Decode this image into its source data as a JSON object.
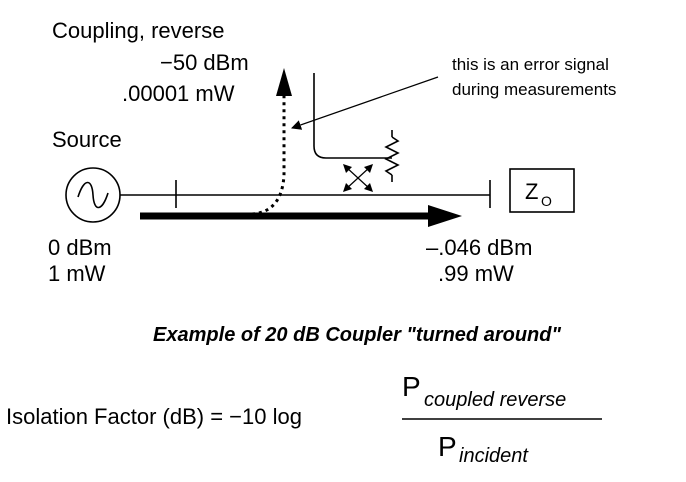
{
  "labels": {
    "coupling_title": "Coupling, reverse",
    "coupling_dbm": "−50 dBm",
    "coupling_mw": ".00001 mW",
    "annotation_line1": "this is an error signal",
    "annotation_line2": "during measurements",
    "source": "Source",
    "load_main": "Z",
    "load_sub": "O",
    "source_dbm": "0 dBm",
    "source_mw": "1 mW",
    "output_dbm": "–.046 dBm",
    "output_mw": ".99 mW"
  },
  "caption": "Example of 20 dB Coupler \"turned around\"",
  "formula": {
    "lhs": "Isolation Factor (dB) = −10 log",
    "numerator_p": "P",
    "numerator_sub": "coupled reverse",
    "denominator_p": "P",
    "denominator_sub": "incident"
  },
  "colors": {
    "ink": "#000000",
    "background": "#ffffff"
  }
}
